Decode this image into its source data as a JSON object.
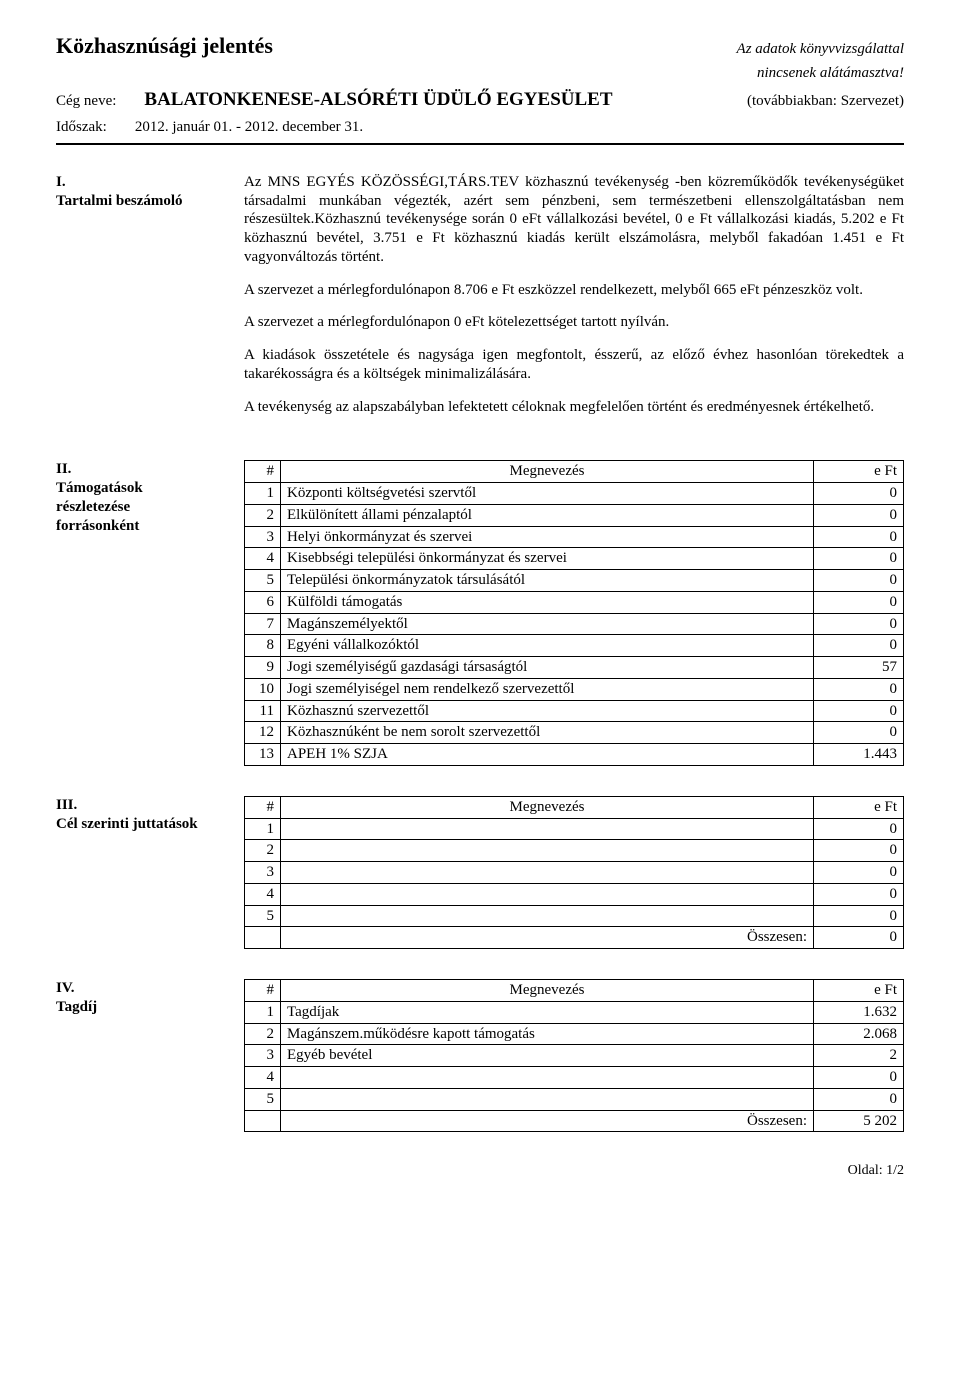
{
  "header": {
    "title": "Közhasznúsági jelentés",
    "audit_line1": "Az adatok könyvvizsgálattal",
    "audit_line2": "nincsenek alátámasztva!",
    "ceg_label": "Cég neve:",
    "ceg_name": "BALATONKENESE-ALSÓRÉTI ÜDÜLŐ EGYESÜLET",
    "tovabb": "(továbbiakban: Szervezet)",
    "idoszak_label": "Időszak:",
    "idoszak_value": "2012. január 01. - 2012. december 31."
  },
  "section1": {
    "num": "I.",
    "title": "Tartalmi beszámoló",
    "paragraphs": [
      "Az MNS EGYÉS KÖZÖSSÉGI,TÁRS.TEV közhasznú tevékenység -ben közreműködők tevékenységüket társadalmi munkában végezték, azért sem pénzbeni, sem természetbeni ellenszolgáltatásban nem részesültek.Közhasznú tevékenysége során 0 eFt vállalkozási bevétel, 0  e Ft vállalkozási kiadás, 5.202 e Ft közhasznú bevétel, 3.751 e Ft közhasznú kiadás került elszámolásra, melyből fakadóan 1.451 e Ft vagyonváltozás történt.",
      "A szervezet a mérlegfordulónapon 8.706 e Ft eszközzel rendelkezett, melyből 665 eFt pénzeszköz volt.",
      "A szervezet a mérlegfordulónapon 0 eFt kötelezettséget tartott nyílván.",
      "A kiadások összetétele és nagysága igen megfontolt, ésszerű, az előző évhez hasonlóan törekedtek a takarékosságra és a költségek minimalizálására.",
      "A tevékenység az alapszabályban lefektetett céloknak megfelelően történt és eredményesnek értékelhető."
    ]
  },
  "section2": {
    "num": "II.",
    "title": "Támogatások részletezése forrásonként",
    "headers": {
      "num": "#",
      "name": "Megnevezés",
      "val": "e Ft"
    },
    "rows": [
      {
        "n": "1",
        "name": "Központi költségvetési szervtől",
        "v": "0"
      },
      {
        "n": "2",
        "name": "Elkülönített állami pénzalaptól",
        "v": "0"
      },
      {
        "n": "3",
        "name": "Helyi önkormányzat és szervei",
        "v": "0"
      },
      {
        "n": "4",
        "name": "Kisebbségi települési önkormányzat és szervei",
        "v": "0"
      },
      {
        "n": "5",
        "name": "Települési önkormányzatok társulásától",
        "v": "0"
      },
      {
        "n": "6",
        "name": "Külföldi támogatás",
        "v": "0"
      },
      {
        "n": "7",
        "name": "Magánszemélyektől",
        "v": "0"
      },
      {
        "n": "8",
        "name": "Egyéni vállalkozóktól",
        "v": "0"
      },
      {
        "n": "9",
        "name": "Jogi személyiségű gazdasági társaságtól",
        "v": "57"
      },
      {
        "n": "10",
        "name": "Jogi személyiségel nem rendelkező szervezettől",
        "v": "0"
      },
      {
        "n": "11",
        "name": "Közhasznú szervezettől",
        "v": "0"
      },
      {
        "n": "12",
        "name": "Közhasznúként be nem sorolt szervezettől",
        "v": "0"
      },
      {
        "n": "13",
        "name": "APEH 1% SZJA",
        "v": "1.443"
      }
    ]
  },
  "section3": {
    "num": "III.",
    "title": "Cél szerinti juttatások",
    "headers": {
      "num": "#",
      "name": "Megnevezés",
      "val": "e Ft"
    },
    "rows": [
      {
        "n": "1",
        "name": "",
        "v": "0"
      },
      {
        "n": "2",
        "name": "",
        "v": "0"
      },
      {
        "n": "3",
        "name": "",
        "v": "0"
      },
      {
        "n": "4",
        "name": "",
        "v": "0"
      },
      {
        "n": "5",
        "name": "",
        "v": "0"
      }
    ],
    "total_label": "Összesen:",
    "total_value": "0"
  },
  "section4": {
    "num": "IV.",
    "title": "Tagdíj",
    "headers": {
      "num": "#",
      "name": "Megnevezés",
      "val": "e Ft"
    },
    "rows": [
      {
        "n": "1",
        "name": "Tagdíjak",
        "v": "1.632"
      },
      {
        "n": "2",
        "name": "Magánszem.működésre kapott támogatás",
        "v": "2.068"
      },
      {
        "n": "3",
        "name": "Egyéb bevétel",
        "v": "2"
      },
      {
        "n": "4",
        "name": "",
        "v": "0"
      },
      {
        "n": "5",
        "name": "",
        "v": "0"
      }
    ],
    "total_label": "Összesen:",
    "total_value": "5 202"
  },
  "footer": "Oldal: 1/2"
}
